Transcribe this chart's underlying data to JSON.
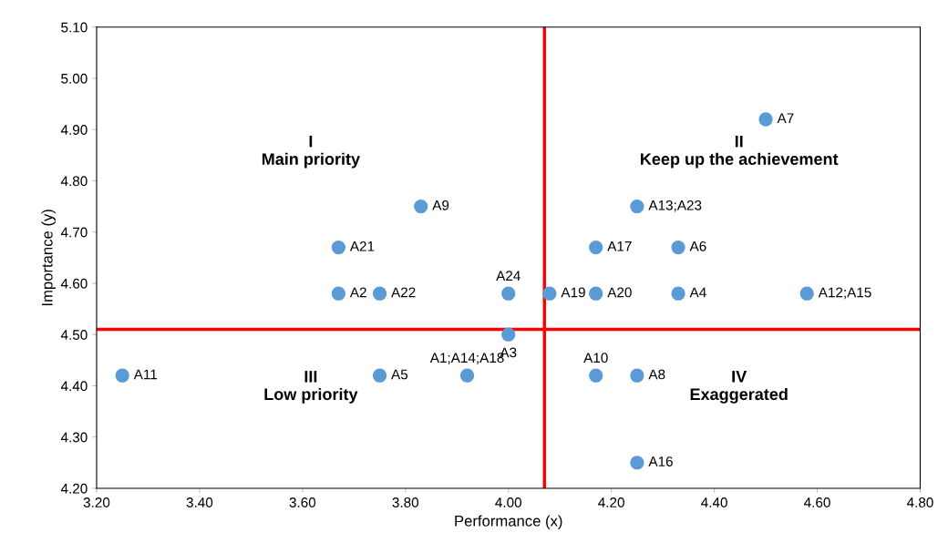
{
  "chart_data": {
    "type": "scatter",
    "xlabel": "Performance (x)",
    "ylabel": "Importance (y)",
    "x": [
      4.5,
      3.83,
      4.25,
      3.67,
      4.17,
      4.33,
      3.67,
      3.75,
      4.0,
      4.08,
      4.17,
      4.33,
      4.58,
      4.0,
      3.25,
      3.75,
      3.92,
      4.17,
      4.25,
      4.25
    ],
    "series": [
      {
        "color": "#5b9bd5",
        "values": [
          4.92,
          4.75,
          4.75,
          4.67,
          4.67,
          4.67,
          4.58,
          4.58,
          4.58,
          4.58,
          4.58,
          4.58,
          4.58,
          4.5,
          4.42,
          4.42,
          4.42,
          4.42,
          4.42,
          4.25
        ],
        "value_labels": [
          "A7",
          "A9",
          "A13;A23",
          "A21",
          "A17",
          "A6",
          "A2",
          "A22",
          "A24",
          "A19",
          "A20",
          "A4",
          "A12;A15",
          "A3",
          "A11",
          "A5",
          "A1;A14;A18",
          "A10",
          "A8",
          "A16"
        ]
      }
    ],
    "marker": "circle",
    "grid": false,
    "xlim": [
      3.2,
      4.8
    ],
    "xticks": [
      {
        "value": 3.2,
        "label": "3.20"
      },
      {
        "value": 3.4,
        "label": "3.40"
      },
      {
        "value": 3.6,
        "label": "3.60"
      },
      {
        "value": 3.8,
        "label": "3.80"
      },
      {
        "value": 4.0,
        "label": "4.00"
      },
      {
        "value": 4.2,
        "label": "4.20"
      },
      {
        "value": 4.4,
        "label": "4.40"
      },
      {
        "value": 4.6,
        "label": "4.60"
      },
      {
        "value": 4.8,
        "label": "4.80"
      }
    ],
    "ylim": [
      4.2,
      5.1
    ],
    "yticks": [
      {
        "value": 4.2,
        "label": "4.20"
      },
      {
        "value": 4.3,
        "label": "4.30"
      },
      {
        "value": 4.4,
        "label": "4.40"
      },
      {
        "value": 4.5,
        "label": "4.50"
      },
      {
        "value": 4.6,
        "label": "4.60"
      },
      {
        "value": 4.7,
        "label": "4.70"
      },
      {
        "value": 4.8,
        "label": "4.80"
      },
      {
        "value": 4.9,
        "label": "4.90"
      },
      {
        "value": 5.0,
        "label": "5.00"
      },
      {
        "value": 5.1,
        "label": "5.10"
      }
    ],
    "ref_lines": [
      {
        "axis": "x",
        "value": 4.07,
        "color": "#ff0000"
      },
      {
        "axis": "y",
        "value": 4.51,
        "color": "#ff0000"
      }
    ],
    "annotations": [
      "I\nMain priority",
      "II\nKeep up the achievement",
      "III\nLow priority",
      "IV\nExaggerated"
    ]
  }
}
